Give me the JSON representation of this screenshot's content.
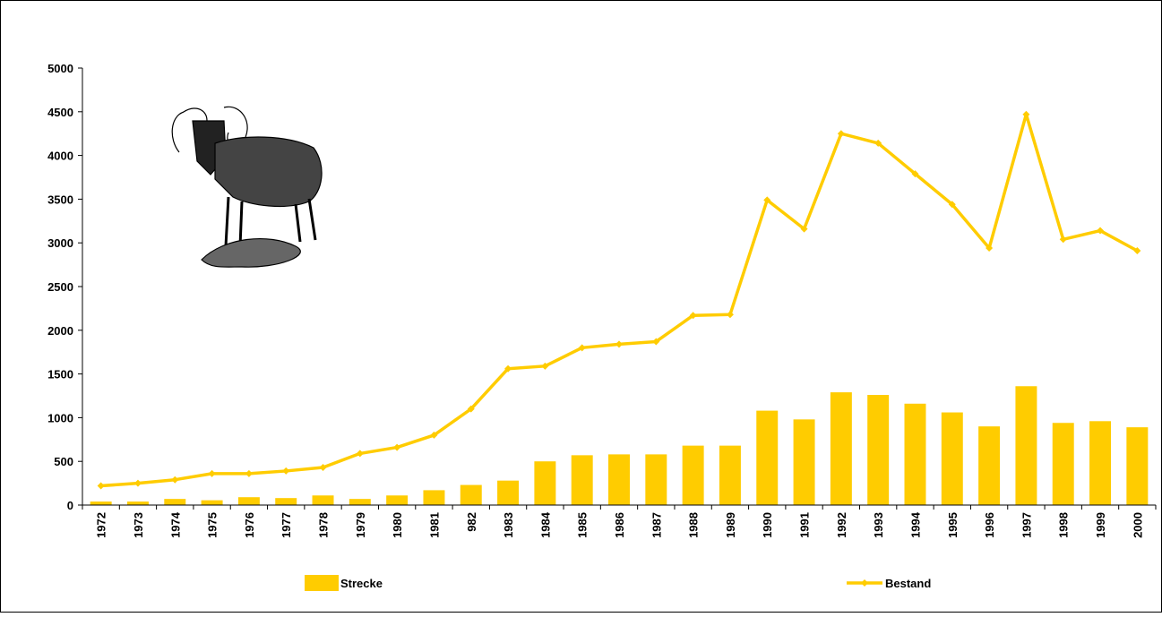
{
  "chart_data": {
    "type": "combo",
    "categories": [
      "1972",
      "1973",
      "1974",
      "1975",
      "1976",
      "1977",
      "1978",
      "1979",
      "1980",
      "1981",
      "982",
      "1983",
      "1984",
      "1985",
      "1986",
      "1987",
      "1988",
      "1989",
      "1990",
      "1991",
      "1992",
      "1993",
      "1994",
      "1995",
      "1996",
      "1997",
      "1998",
      "1999",
      "2000"
    ],
    "series": [
      {
        "name": "Strecke",
        "type": "bar",
        "color": "#ffcc00",
        "values": [
          40,
          40,
          70,
          55,
          90,
          80,
          110,
          70,
          110,
          170,
          230,
          280,
          500,
          570,
          580,
          580,
          680,
          680,
          1080,
          980,
          1290,
          1260,
          1160,
          1060,
          900,
          1360,
          940,
          960,
          890
        ]
      },
      {
        "name": "Bestand",
        "type": "line",
        "color": "#ffcc00",
        "values": [
          220,
          250,
          290,
          360,
          360,
          390,
          430,
          590,
          660,
          800,
          1100,
          1560,
          1590,
          1800,
          1840,
          1870,
          2170,
          2180,
          3490,
          3160,
          4250,
          4140,
          3790,
          3440,
          2940,
          4470,
          3040,
          3140,
          2910
        ]
      }
    ],
    "ylim": [
      0,
      5000
    ],
    "yticks": [
      0,
      500,
      1000,
      1500,
      2000,
      2500,
      3000,
      3500,
      4000,
      4500,
      5000
    ],
    "grid": false,
    "legend": "bottom"
  }
}
